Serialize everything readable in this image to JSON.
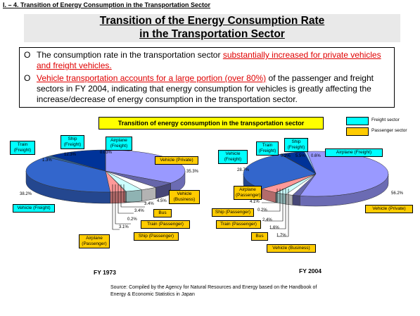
{
  "header": {
    "section": "I. – 4. Transition of Energy Consumption in the Transportation Sector",
    "title_line1": "Transition of the Energy Consumption Rate",
    "title_line2": "in the Transportation Sector"
  },
  "bullets": [
    {
      "marker": "O",
      "parts": [
        {
          "text": "The consumption rate in the transportation sector ",
          "red": false
        },
        {
          "text": "substantially increased for private vehicles and freight vehicles.",
          "red": true
        }
      ]
    },
    {
      "marker": "O",
      "parts": [
        {
          "text": "Vehicle transportation accounts for a large portion (over 80%)",
          "red": true
        },
        {
          "text": " of the passenger and freight sectors in FY 2004, indicating that energy consumption for vehicles is greatly affecting the increase/decrease of energy consumption in the transportation sector.",
          "red": false
        }
      ]
    }
  ],
  "chart_title": "Transition of energy consumption in the transportation sector",
  "legend": [
    {
      "label": "Freight sector",
      "color": "#00ffff"
    },
    {
      "label": "Passenger sector",
      "color": "#ffcc00"
    }
  ],
  "year_labels": {
    "left": "FY 1973",
    "right": "FY 2004"
  },
  "source": "Source:  Compiled by the Agency for Natural Resources and Energy based on the Handbook of Energy & Economic Statistics in Japan",
  "colors": {
    "vehicle_private": "#9999ff",
    "vehicle_business": "#6666aa",
    "bus": "#ffffff",
    "train_passenger": "#ccffff",
    "ship_passenger": "#99cccc",
    "airplane_passenger": "#ff9999",
    "vehicle_freight": "#3366cc",
    "train_freight": "#336699",
    "ship_freight": "#003399",
    "airplane_freight": "#99ccff"
  },
  "chart_data": {
    "type": "pie",
    "title": "Transition of energy consumption in the transportation sector",
    "charts": [
      {
        "year": "FY 1973",
        "slices": [
          {
            "label": "Vehicle (Private)",
            "sector": "Passenger sector",
            "value": 35.3,
            "value_label": "35.3%"
          },
          {
            "label": "Vehicle (Business)",
            "sector": "Passenger sector",
            "value": 4.5,
            "value_label": "4.5%"
          },
          {
            "label": "Bus",
            "sector": "Passenger sector",
            "value": 3.4,
            "value_label": "3.4%"
          },
          {
            "label": "Train (Passenger)",
            "sector": "Passenger sector",
            "value": 3.4,
            "value_label": "3.4%"
          },
          {
            "label": "Ship (Passenger)",
            "sector": "Passenger sector",
            "value": 0.2,
            "value_label": "0.2%"
          },
          {
            "label": "Airplane (Passenger)",
            "sector": "Passenger sector",
            "value": 3.1,
            "value_label": "3.1%"
          },
          {
            "label": "Vehicle (Freight)",
            "sector": "Freight sector",
            "value": 38.2,
            "value_label": "38.2%"
          },
          {
            "label": "Train (Freight)",
            "sector": "Freight sector",
            "value": 1.3,
            "value_label": "1.3%"
          },
          {
            "label": "Ship (Freight)",
            "sector": "Freight sector",
            "value": 12.3,
            "value_label": "12.3%"
          },
          {
            "label": "Airplane (Freight)",
            "sector": "Freight sector",
            "value": 0.03,
            "value_label": "0.03%"
          }
        ]
      },
      {
        "year": "FY 2004",
        "slices": [
          {
            "label": "Vehicle (Private)",
            "sector": "Passenger sector",
            "value": 56.2,
            "value_label": "56.2%"
          },
          {
            "label": "Vehicle (Business)",
            "sector": "Passenger sector",
            "value": 1.7,
            "value_label": "1.7%"
          },
          {
            "label": "Bus",
            "sector": "Passenger sector",
            "value": 1.6,
            "value_label": "1.6%"
          },
          {
            "label": "Train (Passenger)",
            "sector": "Passenger sector",
            "value": 2.4,
            "value_label": "2.4%"
          },
          {
            "label": "Ship (Passenger)",
            "sector": "Passenger sector",
            "value": 0.2,
            "value_label": "0.2%"
          },
          {
            "label": "Airplane (Passenger)",
            "sector": "Passenger sector",
            "value": 4.1,
            "value_label": "4.1%"
          },
          {
            "label": "Vehicle (Freight)",
            "sector": "Freight sector",
            "value": 28.7,
            "value_label": "28.7%"
          },
          {
            "label": "Train (Freight)",
            "sector": "Freight sector",
            "value": 0.2,
            "value_label": "0.2%"
          },
          {
            "label": "Ship (Freight)",
            "sector": "Freight sector",
            "value": 5.5,
            "value_label": "5.5%"
          },
          {
            "label": "Airplane (Freight)",
            "sector": "Freight sector",
            "value": 0.6,
            "value_label": "0.6%"
          }
        ]
      }
    ]
  }
}
